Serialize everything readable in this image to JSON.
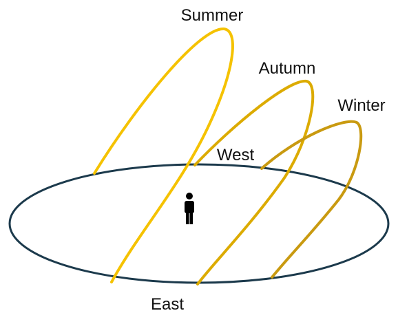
{
  "labels": {
    "summer": "Summer",
    "autumn": "Autumn",
    "winter": "Winter",
    "west": "West",
    "east": "East"
  }
}
